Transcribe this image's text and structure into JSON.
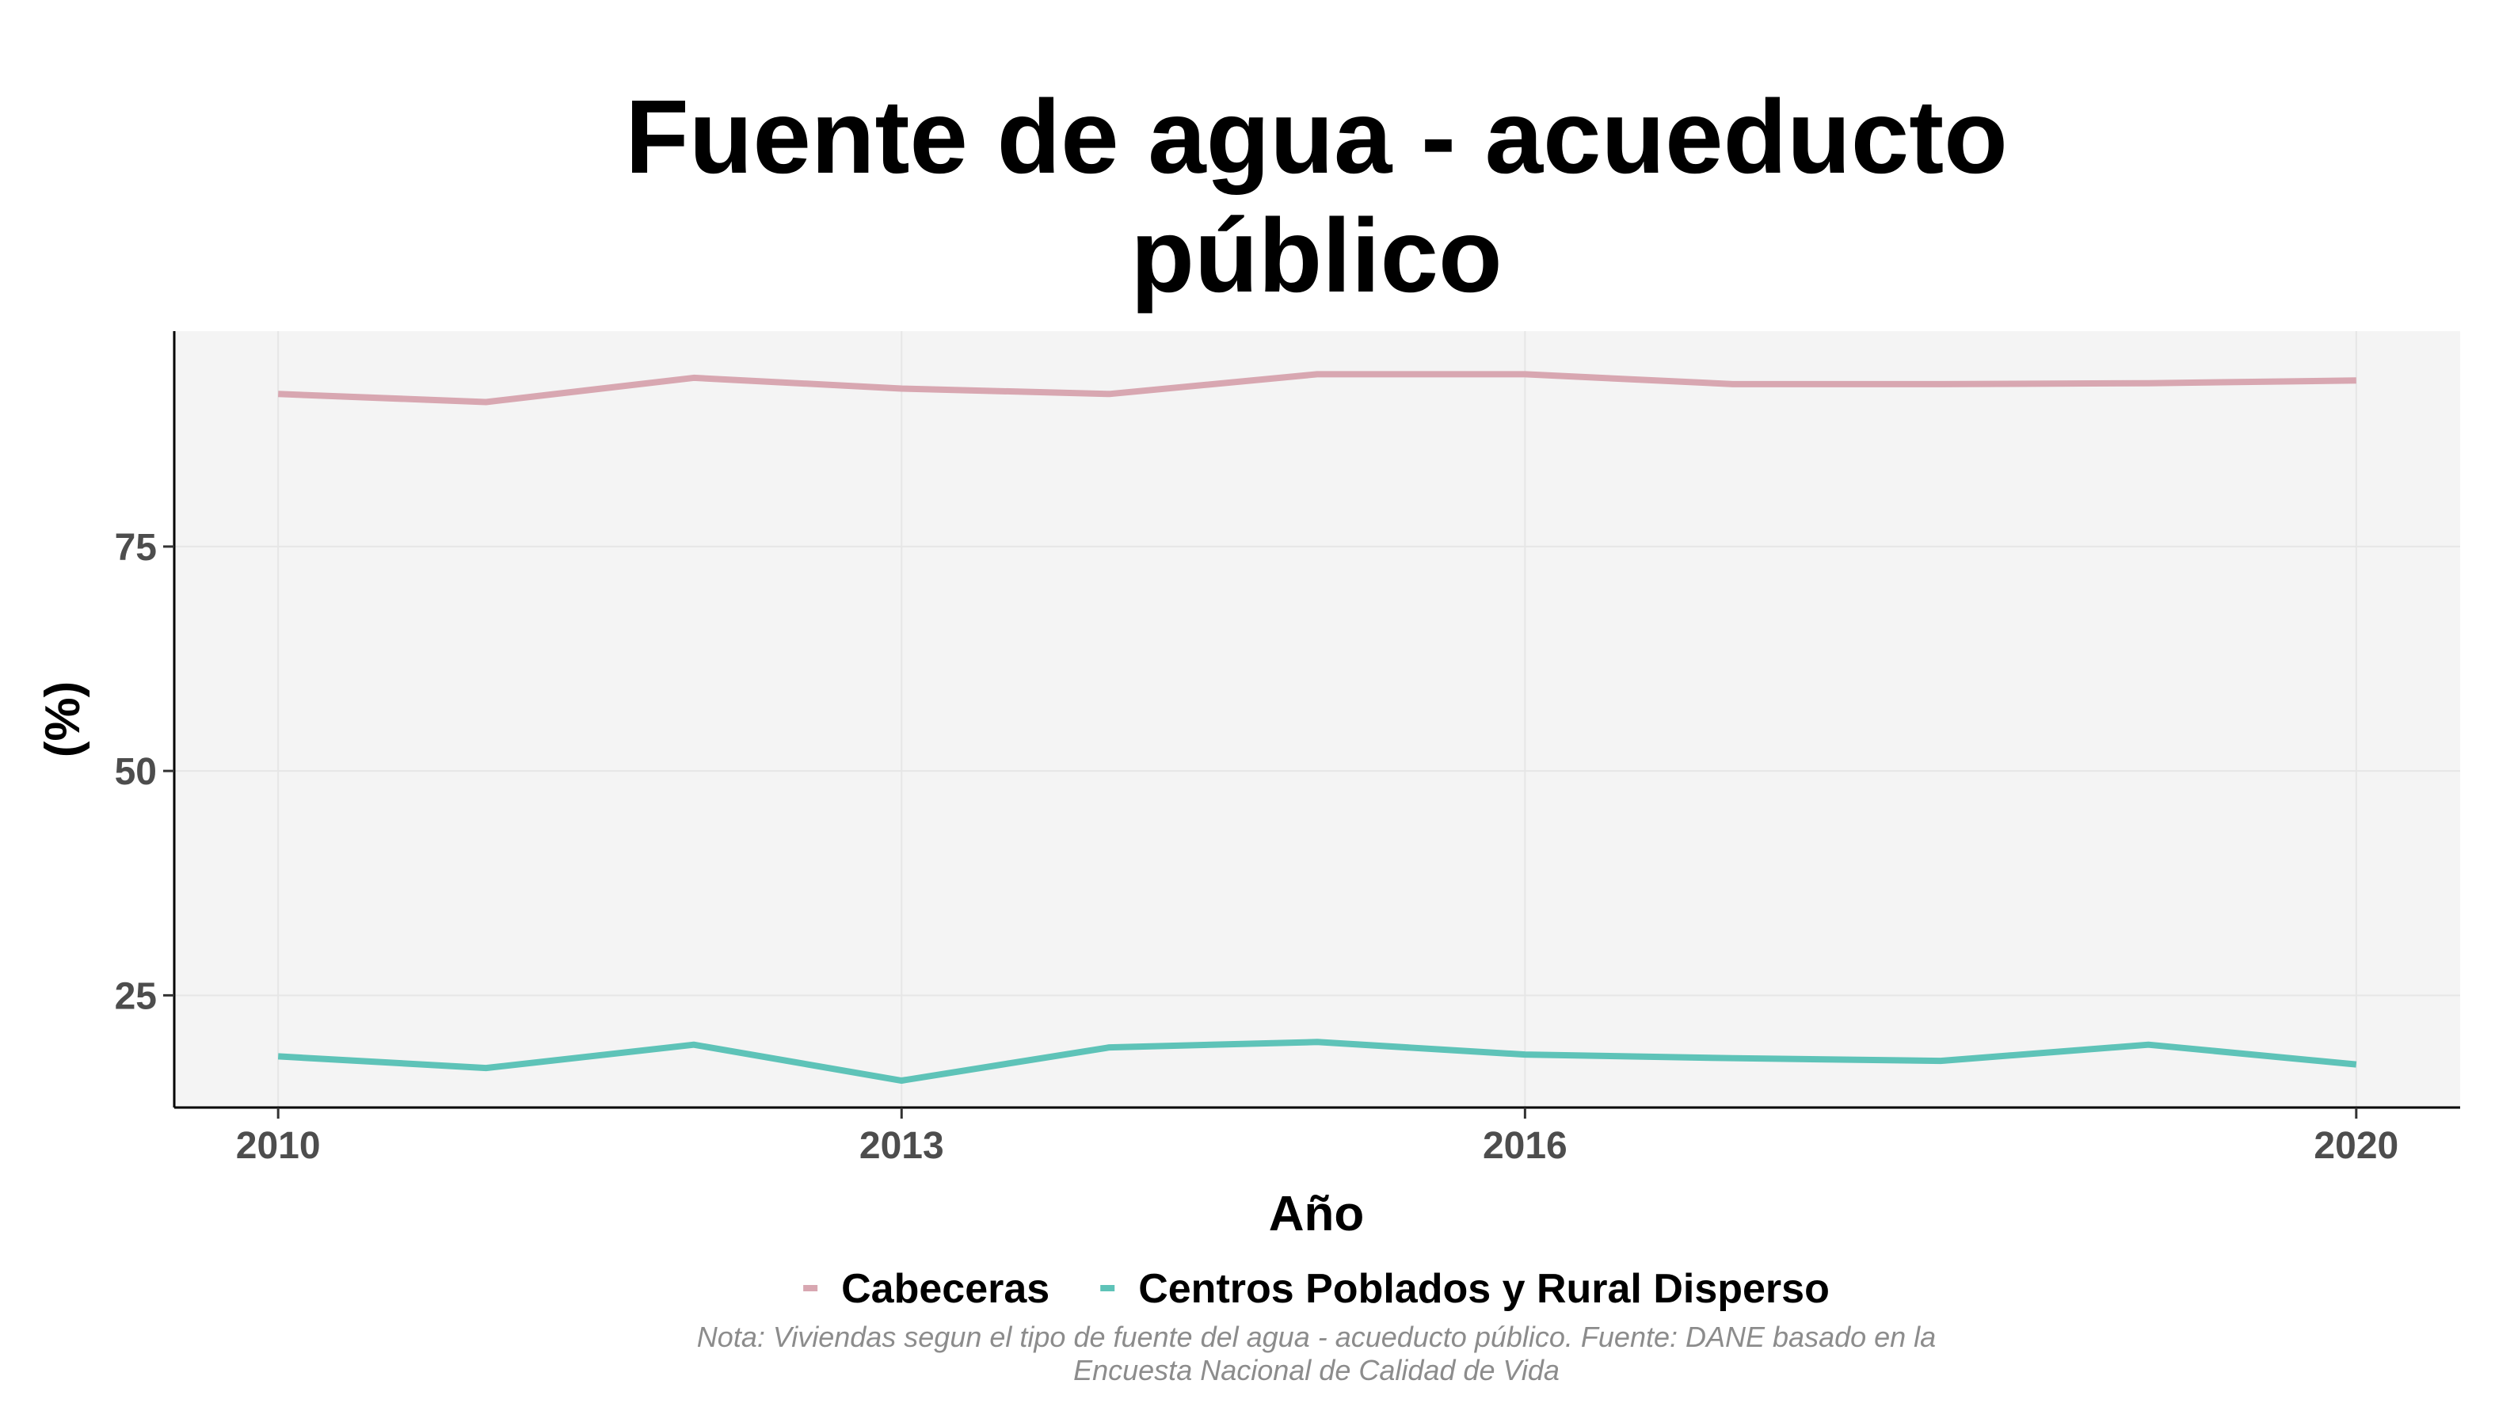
{
  "chart_data": {
    "type": "line",
    "title_lines": [
      "Fuente de agua - acueducto",
      "público"
    ],
    "xlabel": "Año",
    "ylabel": "(%)",
    "x": [
      2010,
      2011,
      2012,
      2013,
      2014,
      2015,
      2016,
      2017,
      2018,
      2019,
      2020
    ],
    "xticks": [
      "2010",
      "2013",
      "2016",
      "2020"
    ],
    "yticks": [
      "25",
      "50",
      "75"
    ],
    "xlim": [
      2009.5,
      2020.5
    ],
    "ylim": [
      12.5,
      99.0
    ],
    "series": [
      {
        "name": "Cabeceras",
        "color": "#d8a7b1",
        "values": [
          92.0,
          91.1,
          93.8,
          92.6,
          92.0,
          94.2,
          94.2,
          93.1,
          93.1,
          93.2,
          93.5
        ]
      },
      {
        "name": "Centros Poblados y Rural Disperso",
        "color": "#5ec3b8",
        "values": [
          18.2,
          16.9,
          19.5,
          15.5,
          19.2,
          19.8,
          18.4,
          18.0,
          17.7,
          19.5,
          17.3
        ]
      }
    ],
    "grid": true,
    "legend_position": "bottom",
    "caption_lines": [
      "Nota: Viviendas segun el tipo de fuente del agua - acueducto público. Fuente: DANE basado en la",
      "Encuesta Nacional de Calidad de Vida"
    ]
  }
}
